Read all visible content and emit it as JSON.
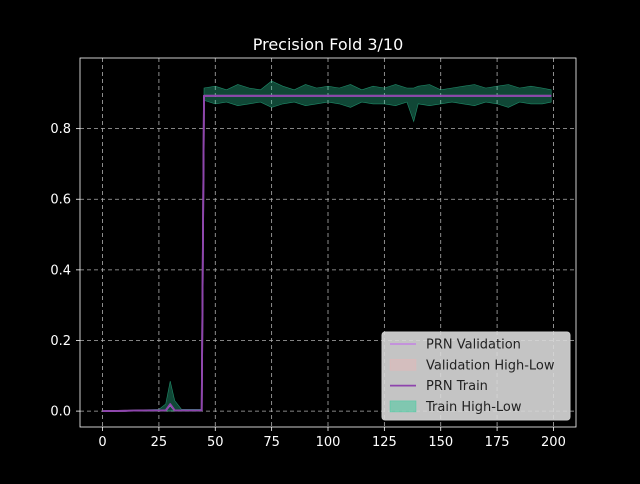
{
  "chart_data": {
    "type": "line",
    "title": "Precision Fold 3/10",
    "xlabel": "",
    "ylabel": "",
    "xlim": [
      -10,
      210
    ],
    "ylim": [
      -0.045,
      1.0
    ],
    "xticks": [
      0,
      25,
      50,
      75,
      100,
      125,
      150,
      175,
      200
    ],
    "yticks": [
      0.0,
      0.2,
      0.4,
      0.6,
      0.8
    ],
    "ytick_labels": [
      "0.0",
      "0.2",
      "0.4",
      "0.6",
      "0.8"
    ],
    "grid": true,
    "legend_position": "lower-right",
    "series": [
      {
        "name": "PRN Validation",
        "kind": "line",
        "color": "#c58be0",
        "x": [
          0,
          10,
          20,
          28,
          30,
          32,
          40,
          44,
          45,
          46,
          60,
          100,
          150,
          199
        ],
        "y": [
          0.0,
          0.001,
          0.002,
          0.002,
          0.018,
          0.002,
          0.002,
          0.002,
          0.893,
          0.893,
          0.893,
          0.893,
          0.893,
          0.893
        ]
      },
      {
        "name": "Validation High-Low",
        "kind": "band",
        "color": "#e8b8b8",
        "x": [
          0,
          44,
          45,
          199
        ],
        "low": [
          0.0,
          0.0,
          0.893,
          0.893
        ],
        "high": [
          0.0,
          0.0,
          0.893,
          0.893
        ]
      },
      {
        "name": "PRN Train",
        "kind": "line",
        "color": "#8e44ad",
        "x": [
          0,
          10,
          20,
          28,
          30,
          32,
          40,
          44,
          45,
          46,
          60,
          100,
          150,
          199
        ],
        "y": [
          0.0,
          0.001,
          0.002,
          0.002,
          0.02,
          0.002,
          0.002,
          0.002,
          0.893,
          0.893,
          0.893,
          0.893,
          0.893,
          0.893
        ]
      },
      {
        "name": "Train High-Low",
        "kind": "band",
        "color": "#2ecc9a",
        "x": [
          0,
          25,
          28,
          30,
          32,
          35,
          44,
          45,
          50,
          55,
          60,
          65,
          70,
          75,
          80,
          85,
          90,
          95,
          100,
          105,
          110,
          115,
          120,
          125,
          130,
          135,
          138,
          140,
          145,
          150,
          155,
          160,
          165,
          170,
          175,
          180,
          185,
          190,
          195,
          199
        ],
        "low": [
          0.0,
          0.0,
          0.0,
          0.0,
          0.0,
          0.0,
          0.0,
          0.88,
          0.87,
          0.875,
          0.865,
          0.87,
          0.875,
          0.86,
          0.87,
          0.875,
          0.865,
          0.87,
          0.875,
          0.87,
          0.86,
          0.875,
          0.87,
          0.87,
          0.865,
          0.875,
          0.82,
          0.87,
          0.865,
          0.87,
          0.875,
          0.87,
          0.865,
          0.875,
          0.87,
          0.86,
          0.875,
          0.87,
          0.87,
          0.875
        ],
        "high": [
          0.0,
          0.005,
          0.02,
          0.085,
          0.03,
          0.005,
          0.005,
          0.915,
          0.92,
          0.91,
          0.925,
          0.915,
          0.91,
          0.935,
          0.92,
          0.91,
          0.925,
          0.915,
          0.92,
          0.915,
          0.925,
          0.91,
          0.92,
          0.915,
          0.925,
          0.915,
          0.915,
          0.92,
          0.925,
          0.91,
          0.915,
          0.92,
          0.925,
          0.915,
          0.92,
          0.925,
          0.915,
          0.92,
          0.915,
          0.91
        ]
      }
    ]
  },
  "colors": {
    "background": "#000000",
    "axes_edge": "#ffffff",
    "grid": "#b0b0b0",
    "text": "#ffffff",
    "legend_bg": "#d9d9d9",
    "legend_text": "#222222"
  }
}
